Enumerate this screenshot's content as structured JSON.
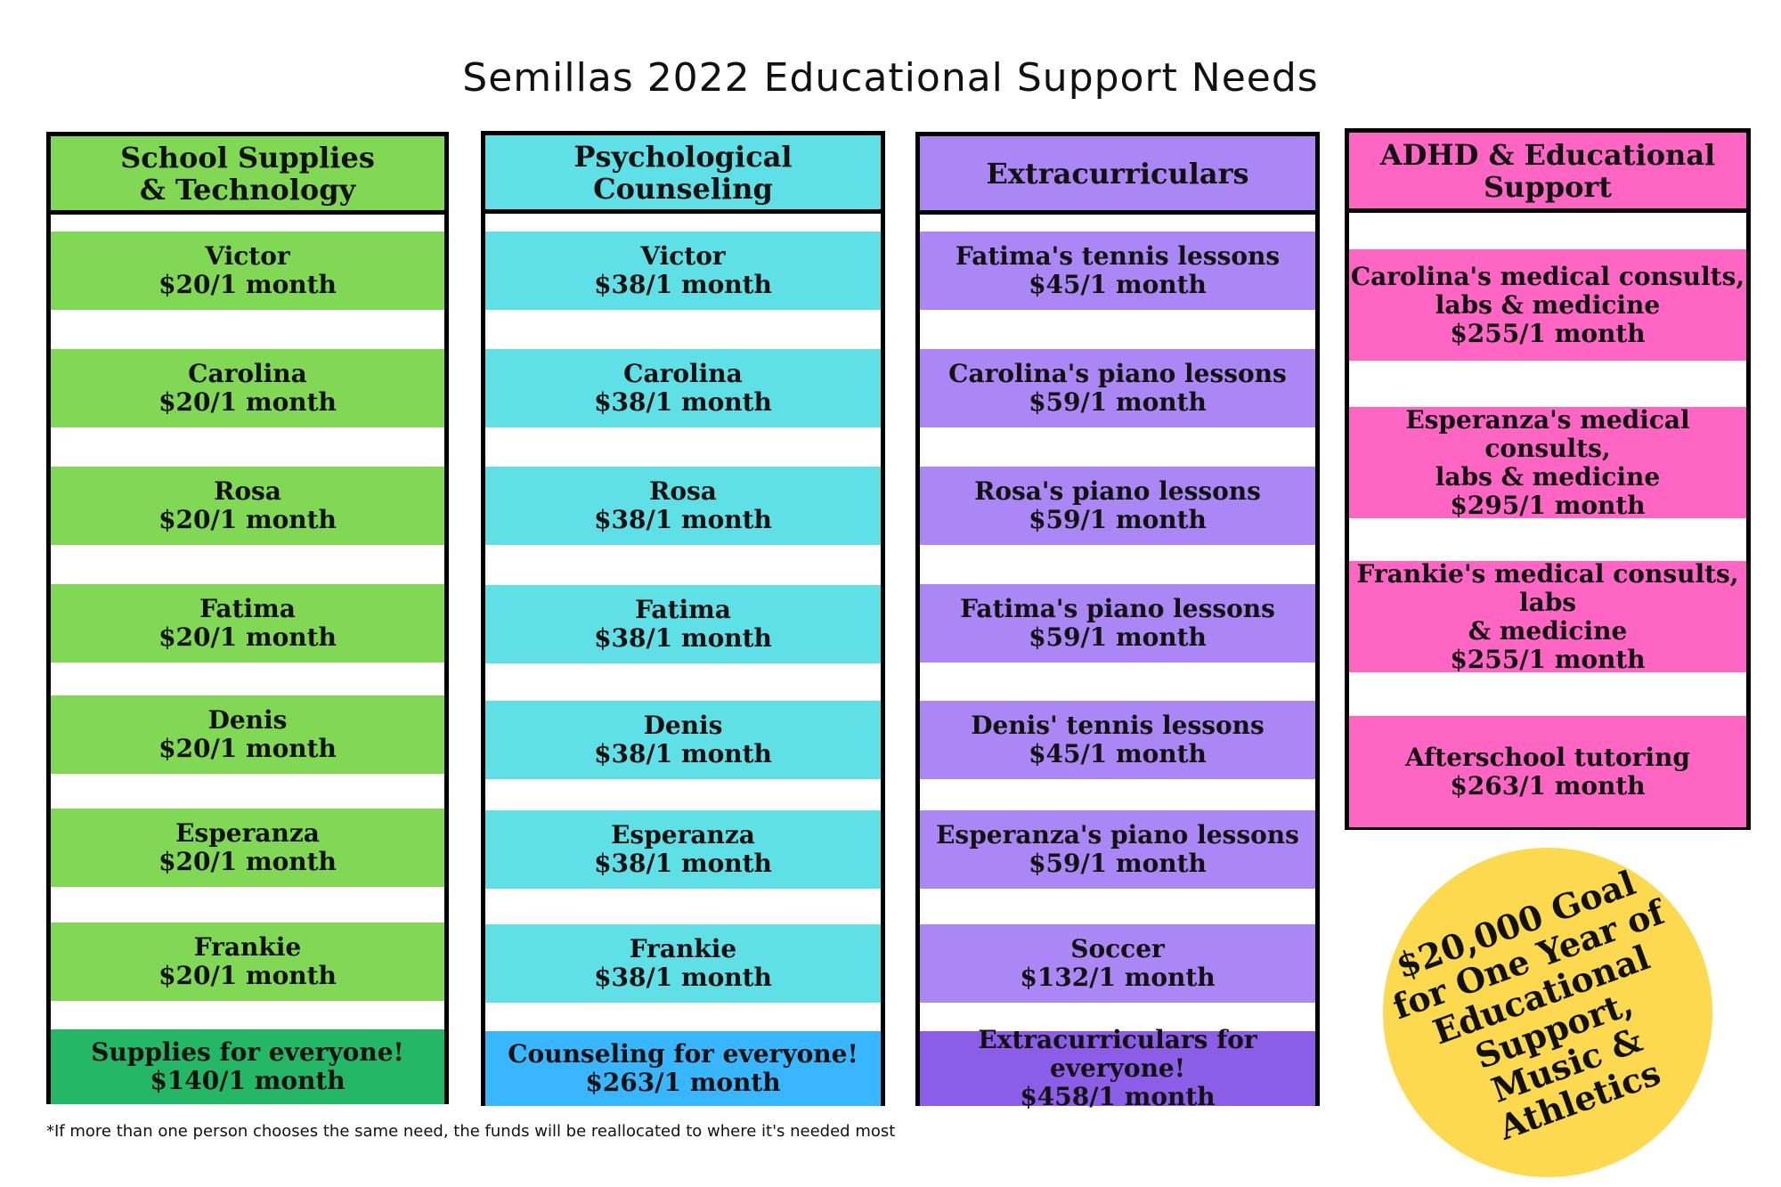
{
  "title": "Semillas 2022 Educational Support Needs",
  "colors": {
    "green": "#80d855",
    "green_dark": "#24b866",
    "cyan": "#5fe0e6",
    "cyan_dark": "#38b6ff",
    "purple": "#ab87f6",
    "purple_dark": "#8c5ee8",
    "pink": "#ff66c4",
    "goal_circle": "#fcd94f"
  },
  "columns": [
    {
      "header": [
        "School Supplies",
        "& Technology"
      ],
      "items": [
        {
          "lines": [
            "Victor",
            "$20/1 month"
          ]
        },
        {
          "lines": [
            "Carolina",
            "$20/1 month"
          ]
        },
        {
          "lines": [
            "Rosa",
            "$20/1 month"
          ]
        },
        {
          "lines": [
            "Fatima",
            "$20/1 month"
          ]
        },
        {
          "lines": [
            "Denis",
            "$20/1 month"
          ]
        },
        {
          "lines": [
            "Esperanza",
            "$20/1 month"
          ]
        },
        {
          "lines": [
            "Frankie",
            "$20/1 month"
          ]
        },
        {
          "lines": [
            "Supplies for everyone!",
            "$140/1 month"
          ]
        }
      ]
    },
    {
      "header": [
        "Psychological Counseling"
      ],
      "items": [
        {
          "lines": [
            "Victor",
            "$38/1 month"
          ]
        },
        {
          "lines": [
            "Carolina",
            "$38/1 month"
          ]
        },
        {
          "lines": [
            "Rosa",
            "$38/1 month"
          ]
        },
        {
          "lines": [
            "Fatima",
            "$38/1 month"
          ]
        },
        {
          "lines": [
            "Denis",
            "$38/1 month"
          ]
        },
        {
          "lines": [
            "Esperanza",
            "$38/1 month"
          ]
        },
        {
          "lines": [
            "Frankie",
            "$38/1 month"
          ]
        },
        {
          "lines": [
            "Counseling for everyone!",
            "$263/1 month"
          ]
        }
      ]
    },
    {
      "header": [
        "Extracurriculars"
      ],
      "items": [
        {
          "lines": [
            "Fatima's tennis lessons",
            "$45/1 month"
          ]
        },
        {
          "lines": [
            "Carolina's piano lessons",
            "$59/1 month"
          ]
        },
        {
          "lines": [
            "Rosa's piano lessons",
            "$59/1 month"
          ]
        },
        {
          "lines": [
            "Fatima's piano lessons",
            "$59/1 month"
          ]
        },
        {
          "lines": [
            "Denis' tennis lessons",
            "$45/1 month"
          ]
        },
        {
          "lines": [
            "Esperanza's piano lessons",
            "$59/1 month"
          ]
        },
        {
          "lines": [
            "Soccer",
            "$132/1 month"
          ]
        },
        {
          "lines": [
            "Extracurriculars for everyone!",
            "$458/1 month"
          ]
        }
      ]
    },
    {
      "header": [
        "ADHD & Educational",
        "Support"
      ],
      "items": [
        {
          "lines": [
            "Carolina's medical consults,",
            "labs & medicine",
            "$255/1 month"
          ]
        },
        {
          "lines": [
            "Esperanza's medical consults,",
            "labs & medicine",
            "$295/1 month"
          ]
        },
        {
          "lines": [
            "Frankie's medical consults, labs",
            "& medicine",
            "$255/1 month"
          ]
        },
        {
          "lines": [
            "Afterschool tutoring",
            "$263/1 month"
          ]
        }
      ]
    }
  ],
  "goal": [
    "$20,000 Goal",
    "for One Year of",
    "Educational Support,",
    "Music & Athletics"
  ],
  "footnote": "*If more than one person chooses the same need, the funds will be reallocated to where it's needed most"
}
